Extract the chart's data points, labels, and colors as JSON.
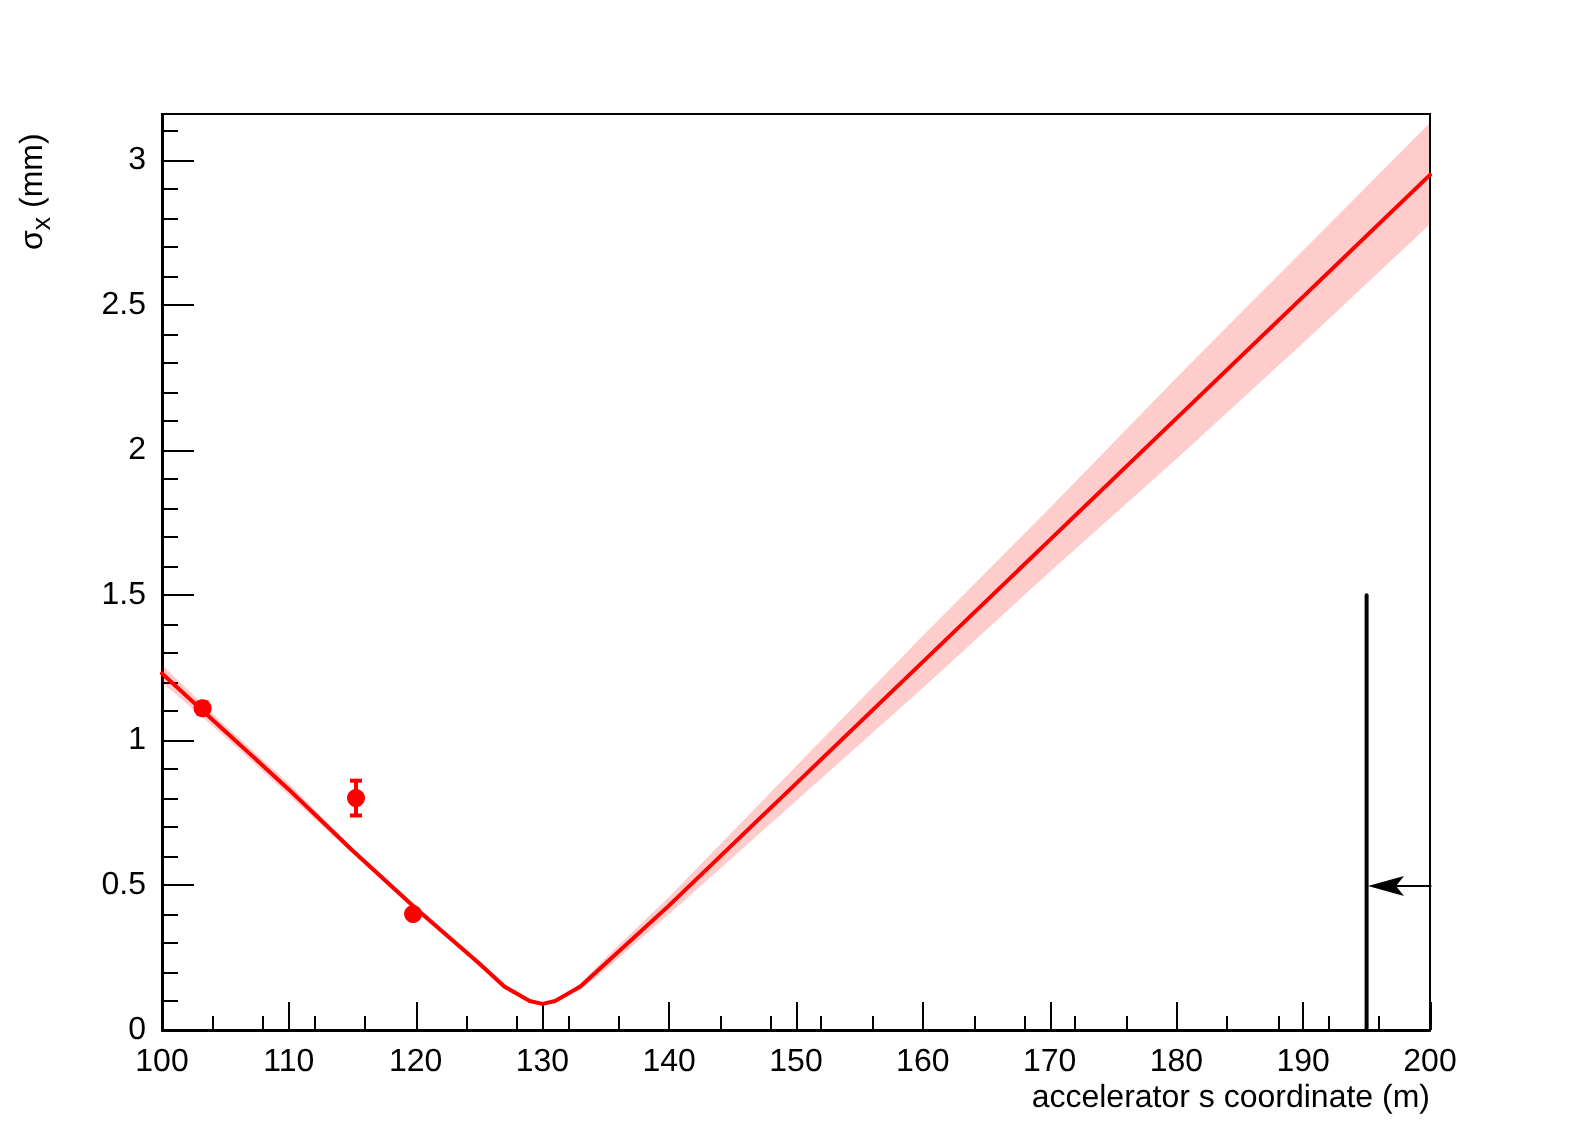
{
  "chart_data": {
    "type": "line",
    "xlabel": "accelerator s coordinate (m)",
    "ylabel": "σ$_{x}$ (mm)",
    "xlim": [
      100,
      200
    ],
    "ylim": [
      0,
      3.16
    ],
    "xticks": [
      100,
      110,
      120,
      130,
      140,
      150,
      160,
      170,
      180,
      190,
      200
    ],
    "yticks": [
      0,
      0.5,
      1,
      1.5,
      2,
      2.5,
      3
    ],
    "grid": false,
    "series": [
      {
        "color": "#ff0000",
        "marker": "none",
        "x": [
          100,
          105,
          110,
          115,
          120,
          125,
          127,
          129,
          130,
          131,
          133,
          135,
          140,
          150,
          160,
          170,
          180,
          190,
          200
        ],
        "values": [
          1.23,
          1.03,
          0.83,
          0.62,
          0.42,
          0.23,
          0.15,
          0.1,
          0.09,
          0.1,
          0.15,
          0.23,
          0.43,
          0.85,
          1.27,
          1.69,
          2.11,
          2.53,
          2.95
        ],
        "lower": [
          1.2,
          1.01,
          0.81,
          0.61,
          0.41,
          0.22,
          0.14,
          0.1,
          0.09,
          0.1,
          0.14,
          0.21,
          0.4,
          0.79,
          1.18,
          1.58,
          1.97,
          2.37,
          2.78
        ],
        "upper": [
          1.26,
          1.05,
          0.85,
          0.63,
          0.43,
          0.24,
          0.16,
          0.1,
          0.09,
          0.1,
          0.16,
          0.25,
          0.46,
          0.91,
          1.36,
          1.8,
          2.25,
          2.69,
          3.13
        ]
      },
      {
        "type": "scatter",
        "color": "#ff0000",
        "marker": "circle",
        "x": [
          103.2,
          115.3,
          119.8
        ],
        "values": [
          1.11,
          0.8,
          0.4
        ],
        "errors": [
          0.02,
          0.06,
          0.01
        ]
      },
      {
        "type": "line",
        "color": "#000000",
        "marker": "none",
        "x": [
          195,
          195
        ],
        "values": [
          0,
          1.5
        ]
      }
    ]
  }
}
